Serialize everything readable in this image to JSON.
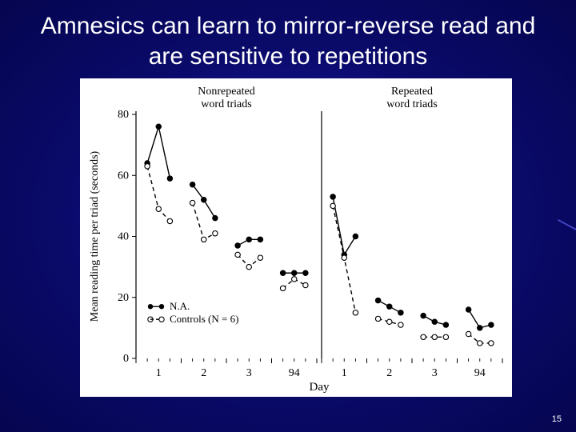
{
  "slide": {
    "title": "Amnesics can learn to mirror-reverse read and are sensitive to repetitions",
    "page_number": "15"
  },
  "chart": {
    "type": "line",
    "background_color": "#ffffff",
    "axis_color": "#000000",
    "title_fontsize": 14,
    "label_fontsize": 14,
    "ylabel": "Mean reading time per triad (seconds)",
    "xlabel": "Day",
    "panels": [
      {
        "title": "Nonrepeated word triads"
      },
      {
        "title": "Repeated word triads"
      }
    ],
    "y": {
      "min": 0,
      "max": 80,
      "ticks": [
        0,
        20,
        40,
        60,
        80
      ]
    },
    "x_ticks_labels": [
      "1",
      "2",
      "3",
      "94"
    ],
    "x_positions_per_panel": [
      1,
      2,
      3,
      5,
      6,
      7,
      9,
      10,
      11,
      13,
      14,
      15
    ],
    "x_max_per_panel": 16,
    "legend": {
      "items": [
        {
          "key": "na",
          "label": "N.A.",
          "marker": "filled",
          "line": "solid"
        },
        {
          "key": "controls",
          "label": "Controls (N = 6)",
          "marker": "open",
          "line": "dashed"
        }
      ]
    },
    "marker_radius": 3.2,
    "line_width": 1.4,
    "series": {
      "panel1": {
        "na": [
          64,
          76,
          59,
          57,
          52,
          46,
          37,
          39,
          39,
          28,
          28,
          28
        ],
        "controls": [
          63,
          49,
          45,
          51,
          39,
          41,
          34,
          30,
          33,
          23,
          26,
          24
        ]
      },
      "panel2": {
        "na": [
          53,
          34,
          40,
          19,
          17,
          15,
          14,
          12,
          11,
          16,
          10,
          11
        ],
        "controls": [
          50,
          33,
          15,
          13,
          12,
          11,
          7,
          7,
          7,
          8,
          5,
          5
        ]
      }
    },
    "colors": {
      "na": "#000000",
      "controls": "#000000",
      "text": "#000000"
    }
  }
}
